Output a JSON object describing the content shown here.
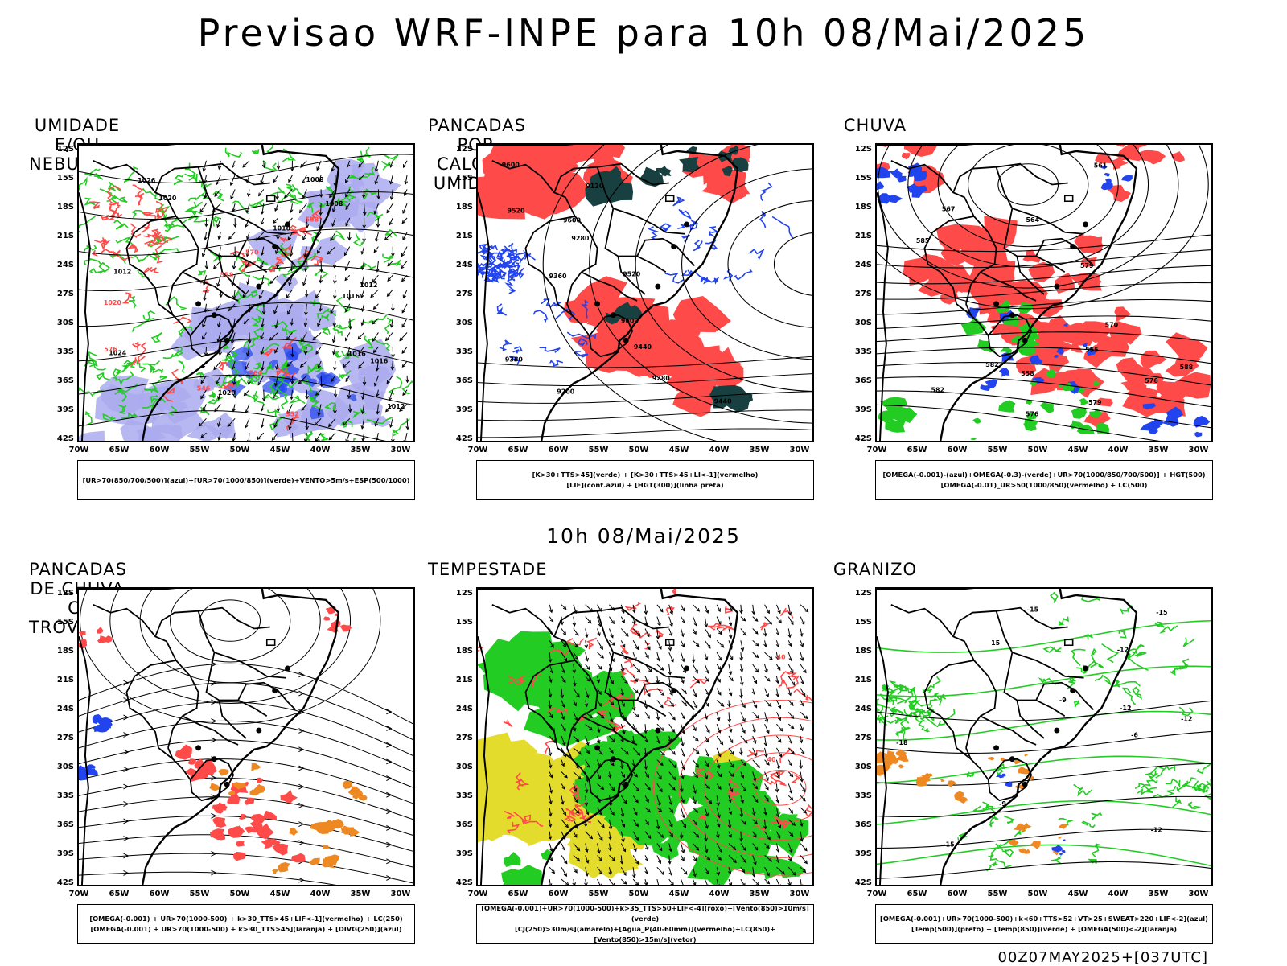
{
  "header": {
    "title": "Previsao WRF-INPE  para 10h 08/Mai/2025",
    "mid_time": "10h 08/Mai/2025",
    "run_label": "00Z07MAY2025+[037UTC]"
  },
  "axes": {
    "lat_labels": [
      "12S",
      "15S",
      "18S",
      "21S",
      "24S",
      "27S",
      "30S",
      "33S",
      "36S",
      "39S",
      "42S"
    ],
    "lon_labels": [
      "70W",
      "65W",
      "60W",
      "55W",
      "50W",
      "45W",
      "40W",
      "35W",
      "30W"
    ]
  },
  "colors": {
    "red": "#ff4a4a",
    "green": "#22cc22",
    "blue": "#2244ee",
    "lavender": "#aaaaee",
    "yellow": "#e4dc2c",
    "darkgreen": "#184040",
    "orange": "#ee8822"
  },
  "panels": [
    {
      "id": "umidade",
      "title": "UMIDADE E/OU NEBULOSIDADE",
      "legend": [
        "[UR>70(850/700/500)](azul)+[UR>70(1000/850)](verde)+VENTO>5m/s+ESP(500/1000)"
      ],
      "contour_labels": [
        "1018",
        "1016",
        "1016",
        "1012",
        "1020",
        "1016",
        "1012",
        "1008",
        "1020",
        "1024",
        "1026",
        "1008",
        "1012",
        "1020",
        "570",
        "576",
        "564",
        "558",
        "546",
        "552",
        "558"
      ]
    },
    {
      "id": "pancadas-calor",
      "title": "PANCADAS POR CALOR E UMIDADE",
      "legend": [
        "[K>30+TTS>45](verde) + [K>30+TTS>45+LI<-1](vermelho)",
        "[LIF](cont.azul) + [HGT(300)](linha preta)"
      ],
      "contour_labels": [
        "9600",
        "9520",
        "9600",
        "9440",
        "9360",
        "9280",
        "9200",
        "9120",
        "9600",
        "9520",
        "9440",
        "9360",
        "9280"
      ]
    },
    {
      "id": "chuva",
      "title": "CHUVA",
      "legend": [
        "[OMEGA(-0.001)-(azul)+OMEGA(-0.3)-(verde)+UR>70(1000/850/700/500)] + HGT(500)",
        "[OMEGA(-0.01)_UR>50(1000/850)(vermelho) + LC(500)"
      ],
      "contour_labels": [
        "588",
        "585",
        "582",
        "579",
        "576",
        "570",
        "567",
        "564",
        "561",
        "558",
        "555",
        "582",
        "579",
        "576"
      ]
    },
    {
      "id": "pancadas-trovoadas",
      "title": "PANCADAS DE CHUVA C/ TROVOADAS",
      "legend": [
        "[OMEGA(-0.001) + UR>70(1000-500) + k>30_TTS>45+LIF<-1](vermelho) + LC(250)",
        "[OMEGA(-0.001) + UR>70(1000-500) + k>30_TTS>45](laranja) + [DIVG(250)](azul)"
      ],
      "contour_labels": []
    },
    {
      "id": "tempestade",
      "title": "TEMPESTADE",
      "legend": [
        "[OMEGA(-0.001)+UR>70(1000-500)+k>35_TTS>50+LIF<-4](roxo)+[Vento(850)>10m/s](verde)",
        "[CJ(250)>30m/s](amarelo)+[Agua_P(40-60mm)](vermelho)+LC(850)+[Vento(850)>15m/s](vetor)"
      ],
      "contour_labels": [
        "40",
        "40"
      ]
    },
    {
      "id": "granizo",
      "title": "GRANIZO",
      "legend": [
        "[OMEGA(-0.001)+UR>70(1000-500)+k<60+TTS>52+VT>25+SWEAT>220+LIF<-2](azul)",
        "[Temp(500)](preto) + [Temp(850)](verde) + [OMEGA(500)<-2](laranja)"
      ],
      "contour_labels": [
        "-9",
        "-12",
        "-15",
        "-15",
        "-12",
        "-18",
        "-12",
        "-15",
        "-9",
        "-6",
        "15",
        "-12"
      ]
    }
  ]
}
